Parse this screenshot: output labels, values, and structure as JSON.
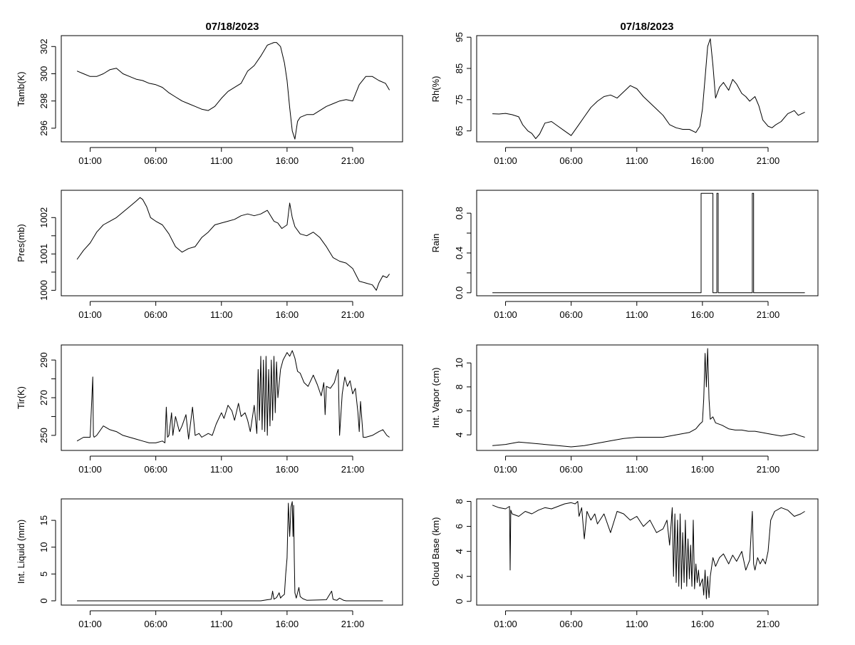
{
  "chart_data": [
    {
      "type": "line",
      "panel": "tamb",
      "title": "07/18/2023",
      "ylabel": "Tamb(K)",
      "ylim": [
        295,
        302.8
      ],
      "yticks": [
        296,
        298,
        300,
        302
      ],
      "series": [
        {
          "x": [
            0.0,
            0.5,
            1.0,
            1.5,
            2.0,
            2.5,
            3.0,
            3.5,
            4.0,
            4.5,
            5.0,
            5.5,
            6.0,
            6.5,
            7.0,
            7.5,
            8.0,
            8.5,
            9.0,
            9.5,
            10.0,
            10.5,
            11.0,
            11.5,
            12.0,
            12.5,
            13.0,
            13.5,
            14.0,
            14.5,
            15.0,
            15.2,
            15.5,
            15.8,
            16.0,
            16.2,
            16.4,
            16.6,
            16.8,
            17.0,
            17.5,
            18.0,
            18.5,
            19.0,
            19.5,
            20.0,
            20.5,
            21.0,
            21.5,
            22.0,
            22.5,
            23.0,
            23.5,
            23.8
          ],
          "y": [
            300.2,
            300.0,
            299.8,
            299.8,
            300.0,
            300.3,
            300.4,
            300.0,
            299.8,
            299.6,
            299.5,
            299.3,
            299.2,
            299.0,
            298.6,
            298.3,
            298.0,
            297.8,
            297.6,
            297.4,
            297.3,
            297.6,
            298.2,
            298.7,
            299.0,
            299.3,
            300.2,
            300.6,
            301.3,
            302.1,
            302.3,
            302.3,
            302.0,
            300.8,
            299.5,
            297.5,
            295.8,
            295.2,
            296.5,
            296.8,
            297.0,
            297.0,
            297.3,
            297.6,
            297.8,
            298.0,
            298.1,
            298.0,
            299.2,
            299.8,
            299.8,
            299.5,
            299.3,
            298.8
          ]
        }
      ]
    },
    {
      "type": "line",
      "panel": "rh",
      "title": "07/18/2023",
      "ylabel": "Rh(%)",
      "ylim": [
        61.5,
        95.5
      ],
      "yticks": [
        65,
        75,
        85,
        95
      ],
      "series": [
        {
          "x": [
            0.0,
            0.5,
            1.0,
            1.5,
            2.0,
            2.3,
            2.7,
            3.0,
            3.3,
            3.6,
            4.0,
            4.5,
            5.0,
            5.5,
            6.0,
            6.5,
            7.0,
            7.5,
            8.0,
            8.5,
            9.0,
            9.5,
            10.0,
            10.5,
            11.0,
            11.5,
            12.0,
            12.5,
            13.0,
            13.5,
            14.0,
            14.5,
            15.0,
            15.5,
            15.8,
            16.0,
            16.2,
            16.4,
            16.6,
            16.8,
            17.0,
            17.3,
            17.6,
            18.0,
            18.3,
            18.6,
            19.0,
            19.3,
            19.6,
            20.0,
            20.3,
            20.6,
            21.0,
            21.3,
            21.6,
            22.0,
            22.5,
            23.0,
            23.3,
            23.8
          ],
          "y": [
            70.5,
            70.4,
            70.6,
            70.2,
            69.5,
            67.0,
            65.0,
            64.2,
            62.5,
            64.0,
            67.5,
            68.0,
            66.5,
            65.0,
            63.5,
            66.5,
            69.5,
            72.5,
            74.5,
            76.0,
            76.5,
            75.5,
            77.5,
            79.5,
            78.5,
            76.0,
            74.0,
            72.0,
            70.0,
            67.0,
            66.0,
            65.5,
            65.5,
            64.5,
            66.5,
            72.0,
            82.0,
            92.0,
            94.5,
            86.0,
            75.5,
            79.0,
            80.5,
            78.0,
            81.5,
            80.0,
            77.0,
            76.0,
            74.5,
            76.0,
            73.0,
            68.5,
            66.5,
            66.0,
            67.0,
            68.0,
            70.5,
            71.5,
            70.0,
            71.0
          ]
        }
      ]
    },
    {
      "type": "line",
      "panel": "pres",
      "ylabel": "Pres(mb)",
      "ylim": [
        999.85,
        1002.75
      ],
      "yticks": [
        1000.0,
        1001.0,
        1002.0
      ],
      "yminor": [
        1000.5,
        1001.5
      ],
      "series": [
        {
          "x": [
            0.0,
            0.5,
            1.0,
            1.5,
            2.0,
            2.5,
            3.0,
            3.5,
            4.0,
            4.5,
            4.8,
            5.0,
            5.3,
            5.6,
            6.0,
            6.5,
            7.0,
            7.5,
            8.0,
            8.5,
            9.0,
            9.5,
            10.0,
            10.5,
            11.0,
            11.5,
            12.0,
            12.5,
            13.0,
            13.5,
            14.0,
            14.5,
            15.0,
            15.3,
            15.6,
            16.0,
            16.2,
            16.4,
            16.6,
            17.0,
            17.5,
            18.0,
            18.5,
            19.0,
            19.5,
            20.0,
            20.5,
            21.0,
            21.5,
            22.0,
            22.5,
            22.8,
            23.0,
            23.3,
            23.6,
            23.8
          ],
          "y": [
            1000.85,
            1001.1,
            1001.3,
            1001.6,
            1001.8,
            1001.9,
            1002.0,
            1002.15,
            1002.3,
            1002.45,
            1002.55,
            1002.5,
            1002.3,
            1002.0,
            1001.9,
            1001.8,
            1001.55,
            1001.2,
            1001.05,
            1001.15,
            1001.2,
            1001.45,
            1001.6,
            1001.8,
            1001.85,
            1001.9,
            1001.95,
            1002.05,
            1002.1,
            1002.05,
            1002.1,
            1002.2,
            1001.9,
            1001.85,
            1001.7,
            1001.8,
            1002.4,
            1002.0,
            1001.75,
            1001.55,
            1001.5,
            1001.6,
            1001.45,
            1001.2,
            1000.9,
            1000.8,
            1000.75,
            1000.6,
            1000.25,
            1000.2,
            1000.15,
            1000.0,
            1000.2,
            1000.4,
            1000.35,
            1000.45
          ]
        }
      ]
    },
    {
      "type": "line",
      "panel": "rain",
      "ylabel": "Rain",
      "ylim": [
        -0.03,
        1.03
      ],
      "yticks": [
        0.0,
        0.4,
        0.8
      ],
      "ytick_labels": [
        "0.0",
        "0.4",
        "0.8"
      ],
      "yminor": [
        0.2,
        0.6
      ],
      "series": [
        {
          "x": [
            0.0,
            15.9,
            15.9,
            16.8,
            16.8,
            17.1,
            17.1,
            17.2,
            17.2,
            19.8,
            19.8,
            19.9,
            19.9,
            23.8
          ],
          "y": [
            0,
            0,
            1,
            1,
            0,
            0,
            1,
            1,
            0,
            0,
            1,
            1,
            0,
            0
          ]
        }
      ]
    },
    {
      "type": "line",
      "panel": "tir",
      "ylabel": "Tir(K)",
      "ylim": [
        242,
        298
      ],
      "yticks": [
        250,
        270,
        290
      ],
      "yminor": [
        260,
        280
      ],
      "series": [
        {
          "x": [
            0.0,
            0.5,
            1.0,
            1.2,
            1.25,
            1.3,
            1.5,
            2.0,
            2.5,
            3.0,
            3.5,
            4.0,
            4.5,
            5.0,
            5.5,
            6.0,
            6.5,
            6.7,
            6.8,
            6.9,
            7.0,
            7.2,
            7.3,
            7.5,
            7.8,
            8.0,
            8.3,
            8.5,
            8.8,
            9.0,
            9.3,
            9.5,
            10.0,
            10.3,
            10.6,
            11.0,
            11.2,
            11.5,
            11.8,
            12.0,
            12.3,
            12.5,
            12.8,
            13.0,
            13.2,
            13.5,
            13.7,
            13.8,
            13.9,
            14.0,
            14.1,
            14.2,
            14.3,
            14.4,
            14.5,
            14.6,
            14.7,
            14.8,
            14.9,
            15.0,
            15.1,
            15.2,
            15.3,
            15.5,
            15.7,
            16.0,
            16.2,
            16.4,
            16.6,
            16.8,
            17.0,
            17.3,
            17.6,
            18.0,
            18.3,
            18.6,
            18.8,
            18.9,
            19.0,
            19.3,
            19.6,
            19.8,
            19.9,
            20.0,
            20.2,
            20.4,
            20.6,
            20.8,
            21.0,
            21.2,
            21.4,
            21.5,
            21.6,
            21.8,
            22.0,
            22.5,
            23.0,
            23.3,
            23.6,
            23.8
          ],
          "y": [
            247,
            249,
            249,
            281,
            250,
            249,
            250,
            255,
            253,
            252,
            250,
            249,
            248,
            247,
            246,
            246,
            247,
            246,
            265,
            249,
            250,
            262,
            250,
            260,
            252,
            255,
            261,
            248,
            265,
            250,
            251,
            249,
            251,
            250,
            256,
            262,
            259,
            266,
            263,
            258,
            267,
            260,
            262,
            258,
            252,
            266,
            251,
            285,
            258,
            292,
            253,
            290,
            252,
            292,
            250,
            285,
            255,
            290,
            258,
            292,
            262,
            289,
            270,
            285,
            290,
            294,
            292,
            295,
            291,
            284,
            283,
            278,
            276,
            282,
            277,
            271,
            278,
            261,
            276,
            275,
            278,
            283,
            285,
            250,
            272,
            281,
            276,
            279,
            272,
            275,
            262,
            252,
            268,
            249,
            249,
            250,
            252,
            253,
            250,
            249
          ]
        }
      ]
    },
    {
      "type": "line",
      "panel": "vapor",
      "ylabel": "Int. Vapor (cm)",
      "ylim": [
        2.7,
        11.5
      ],
      "yticks": [
        4,
        6,
        8,
        10
      ],
      "series": [
        {
          "x": [
            0.0,
            1.0,
            2.0,
            3.0,
            4.0,
            5.0,
            6.0,
            7.0,
            8.0,
            9.0,
            10.0,
            11.0,
            12.0,
            13.0,
            14.0,
            15.0,
            15.5,
            15.8,
            16.0,
            16.1,
            16.2,
            16.3,
            16.4,
            16.5,
            16.6,
            16.8,
            17.0,
            17.5,
            18.0,
            18.5,
            19.0,
            19.5,
            20.0,
            20.5,
            21.0,
            21.5,
            22.0,
            22.5,
            23.0,
            23.5,
            23.8
          ],
          "y": [
            3.1,
            3.2,
            3.4,
            3.3,
            3.2,
            3.1,
            3.0,
            3.1,
            3.3,
            3.5,
            3.7,
            3.8,
            3.8,
            3.8,
            4.0,
            4.2,
            4.5,
            4.9,
            5.1,
            7.0,
            10.8,
            8.0,
            11.2,
            7.0,
            5.3,
            5.5,
            5.0,
            4.8,
            4.5,
            4.4,
            4.4,
            4.3,
            4.3,
            4.2,
            4.1,
            4.0,
            3.9,
            4.0,
            4.1,
            3.9,
            3.8
          ]
        }
      ]
    },
    {
      "type": "line",
      "panel": "liquid",
      "ylabel": "Int. Liquid (mm)",
      "ylim": [
        -0.8,
        19
      ],
      "yticks": [
        0,
        5,
        10,
        15
      ],
      "series": [
        {
          "x": [
            0.0,
            14.0,
            14.5,
            14.8,
            14.9,
            15.0,
            15.2,
            15.4,
            15.5,
            15.6,
            15.8,
            15.9,
            16.0,
            16.1,
            16.2,
            16.3,
            16.4,
            16.45,
            16.5,
            16.55,
            16.6,
            16.7,
            16.9,
            17.0,
            17.2,
            17.5,
            19.0,
            19.4,
            19.5,
            19.6,
            19.8,
            20.0,
            20.3,
            20.5,
            21.0,
            23.3
          ],
          "y": [
            0,
            0,
            0.2,
            0.3,
            1.8,
            0.3,
            0.6,
            1.5,
            0.5,
            0.8,
            1.2,
            5.0,
            8.0,
            18.2,
            12.0,
            17.5,
            18.5,
            12.0,
            17.8,
            8.0,
            1.5,
            0.5,
            2.5,
            0.8,
            0.4,
            0.1,
            0.2,
            1.8,
            0.3,
            0.2,
            0.1,
            0.5,
            0.1,
            0,
            0,
            0
          ]
        }
      ]
    },
    {
      "type": "line",
      "panel": "cloud",
      "ylabel": "Cloud Base (km)",
      "ylim": [
        -0.3,
        8.2
      ],
      "yticks": [
        0,
        2,
        4,
        6,
        8
      ],
      "series": [
        {
          "x": [
            0.0,
            0.5,
            1.0,
            1.3,
            1.35,
            1.4,
            1.5,
            2.0,
            2.5,
            3.0,
            3.5,
            4.0,
            4.5,
            5.0,
            5.5,
            6.0,
            6.3,
            6.5,
            6.6,
            6.8,
            7.0,
            7.2,
            7.5,
            7.8,
            8.0,
            8.5,
            9.0,
            9.5,
            10.0,
            10.5,
            11.0,
            11.5,
            12.0,
            12.5,
            13.0,
            13.3,
            13.5,
            13.7,
            13.8,
            13.9,
            14.0,
            14.1,
            14.2,
            14.3,
            14.4,
            14.5,
            14.6,
            14.7,
            14.8,
            14.9,
            15.0,
            15.1,
            15.2,
            15.3,
            15.4,
            15.5,
            15.6,
            15.7,
            15.8,
            16.0,
            16.1,
            16.2,
            16.3,
            16.4,
            16.5,
            16.6,
            16.8,
            17.0,
            17.3,
            17.6,
            18.0,
            18.3,
            18.6,
            19.0,
            19.3,
            19.6,
            19.8,
            19.9,
            20.0,
            20.2,
            20.4,
            20.6,
            20.8,
            21.0,
            21.2,
            21.5,
            22.0,
            22.5,
            23.0,
            23.5,
            23.8
          ],
          "y": [
            7.7,
            7.5,
            7.4,
            7.6,
            2.5,
            7.3,
            7.0,
            6.8,
            7.2,
            7.0,
            7.3,
            7.5,
            7.4,
            7.6,
            7.8,
            7.9,
            7.8,
            8.0,
            6.8,
            7.5,
            5.0,
            7.2,
            6.5,
            7.0,
            6.2,
            7.0,
            5.5,
            7.2,
            7.0,
            6.5,
            6.8,
            6.0,
            6.5,
            5.5,
            5.8,
            6.5,
            4.5,
            7.5,
            2.0,
            7.0,
            1.5,
            6.5,
            1.2,
            7.0,
            1.0,
            5.5,
            1.5,
            6.5,
            1.2,
            5.0,
            1.8,
            4.5,
            1.2,
            6.5,
            1.0,
            3.0,
            1.5,
            2.5,
            1.2,
            1.8,
            0.5,
            2.5,
            0.2,
            2.0,
            0.3,
            2.0,
            3.5,
            2.8,
            3.5,
            3.8,
            3.0,
            3.7,
            3.2,
            4.0,
            2.5,
            3.3,
            7.2,
            3.0,
            2.5,
            3.5,
            3.0,
            3.4,
            3.0,
            4.0,
            6.5,
            7.2,
            7.5,
            7.3,
            6.8,
            7.0,
            7.2
          ]
        }
      ]
    }
  ],
  "x_axis": {
    "range_hours": [
      -1.2,
      24.8
    ],
    "ticks": [
      1,
      6,
      11,
      16,
      21
    ],
    "tick_labels": [
      "01:00",
      "06:00",
      "11:00",
      "16:00",
      "21:00"
    ]
  }
}
